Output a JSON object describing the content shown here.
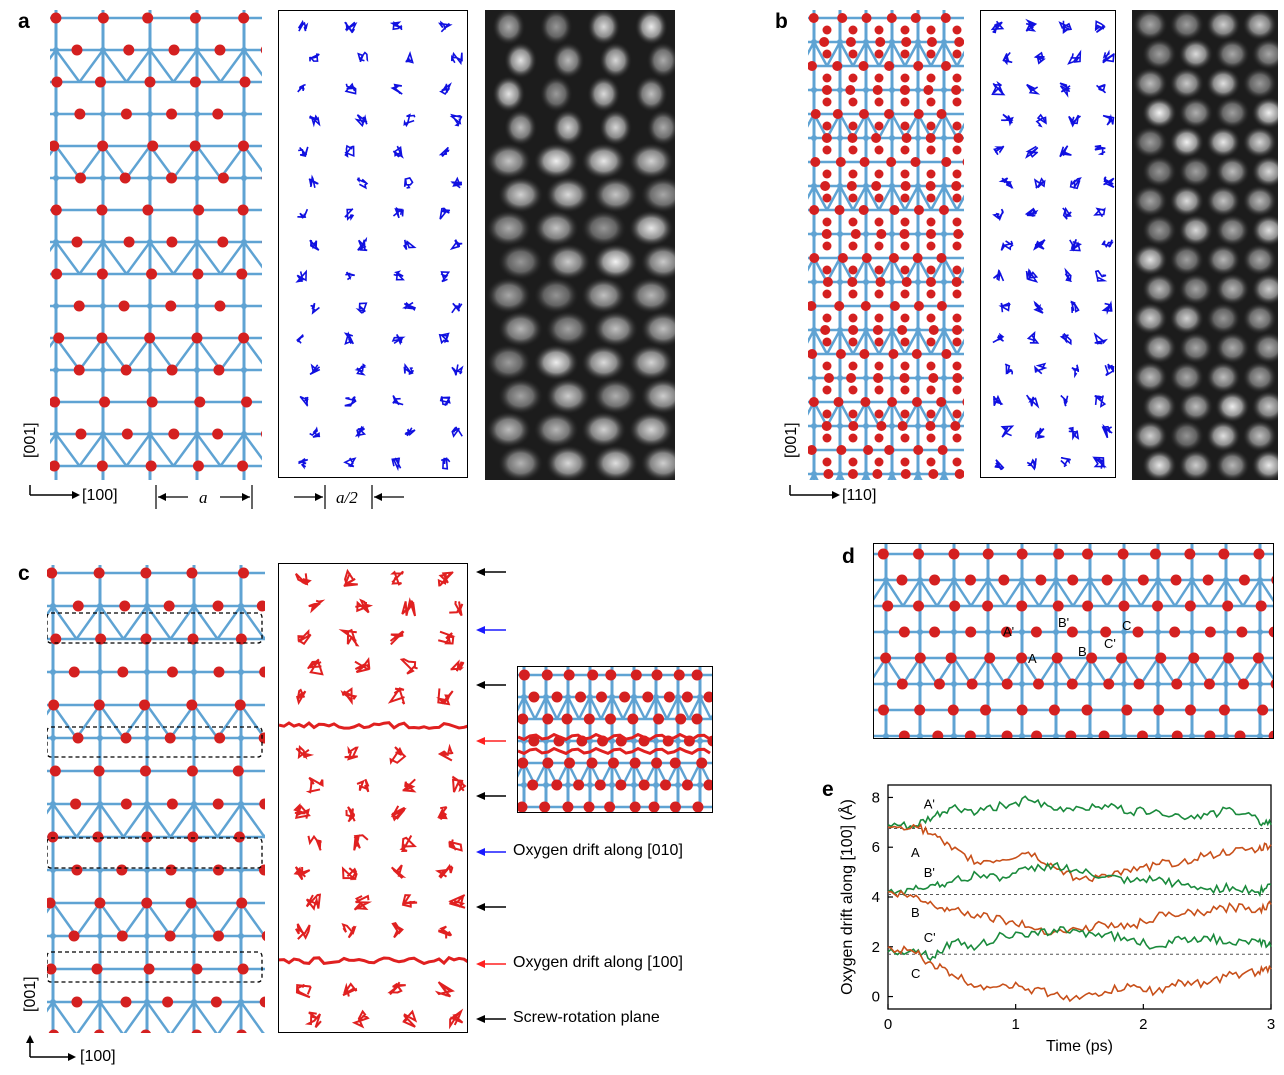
{
  "panels": {
    "a": "a",
    "b": "b",
    "c": "c",
    "d": "d",
    "e": "e"
  },
  "axes": {
    "a_vertical": "[001]",
    "a_horizontal": "[100]",
    "b_vertical": "[001]",
    "b_horizontal": "[110]",
    "c_vertical": "[001]",
    "c_horizontal": "[100]"
  },
  "dimensions": {
    "a": "a",
    "a_half": "a/2"
  },
  "legend": {
    "blue_drift": "Oxygen drift along [010]",
    "red_drift": "Oxygen drift along [100]",
    "screw_plane": "Screw-rotation plane"
  },
  "colors": {
    "oxygen": "#d42020",
    "metal": "#5fa3d3",
    "trajectory_blue": "#1010e0",
    "trajectory_red": "#e02020",
    "arrow_blue": "#1a1aff",
    "arrow_red": "#ff2020",
    "series_green": "#1a8a3c",
    "series_orange": "#c8501a"
  },
  "site_labels": [
    "A'",
    "A",
    "B'",
    "B",
    "C'",
    "C"
  ],
  "chart_data": {
    "type": "line",
    "xlabel": "Time (ps)",
    "ylabel": "Oxygen drift along [100] (Å)",
    "xlim": [
      0,
      3
    ],
    "ylim": [
      -0.5,
      8.5
    ],
    "xticks": [
      "0",
      "1",
      "2",
      "3"
    ],
    "yticks": [
      "0",
      "2",
      "4",
      "6",
      "8"
    ],
    "reference_lines": [
      6.75,
      4.1,
      1.7
    ],
    "series": [
      {
        "name": "A'",
        "color": "green",
        "x": [
          0,
          0.2,
          0.35,
          0.5,
          0.7,
          0.9,
          1.1,
          1.3,
          1.5,
          1.7,
          1.9,
          2.1,
          2.3,
          2.5,
          2.7,
          2.9,
          3.0
        ],
        "y": [
          6.9,
          6.8,
          7.2,
          7.6,
          7.4,
          7.7,
          7.9,
          7.5,
          7.6,
          7.7,
          7.4,
          7.5,
          7.2,
          7.3,
          7.5,
          7.1,
          6.9
        ]
      },
      {
        "name": "A",
        "color": "orange",
        "x": [
          0,
          0.2,
          0.35,
          0.5,
          0.7,
          0.9,
          1.1,
          1.3,
          1.5,
          1.7,
          1.9,
          2.1,
          2.3,
          2.5,
          2.7,
          2.9,
          3.0
        ],
        "y": [
          6.8,
          6.9,
          6.5,
          5.9,
          5.4,
          5.5,
          5.8,
          5.2,
          4.7,
          4.9,
          5.0,
          5.3,
          5.4,
          5.7,
          5.8,
          5.9,
          6.1
        ]
      },
      {
        "name": "B'",
        "color": "green",
        "x": [
          0,
          0.2,
          0.35,
          0.5,
          0.7,
          0.9,
          1.1,
          1.3,
          1.5,
          1.7,
          1.9,
          2.1,
          2.3,
          2.5,
          2.7,
          2.9,
          3.0
        ],
        "y": [
          4.2,
          4.3,
          4.5,
          4.6,
          4.9,
          4.8,
          5.1,
          5.3,
          5.0,
          4.8,
          4.6,
          4.7,
          4.5,
          4.3,
          4.4,
          4.2,
          4.5
        ]
      },
      {
        "name": "B",
        "color": "orange",
        "x": [
          0,
          0.2,
          0.35,
          0.5,
          0.7,
          0.9,
          1.1,
          1.3,
          1.5,
          1.7,
          1.9,
          2.1,
          2.3,
          2.5,
          2.7,
          2.9,
          3.0
        ],
        "y": [
          4.2,
          4.0,
          3.7,
          3.5,
          3.3,
          3.1,
          2.8,
          2.6,
          2.7,
          2.9,
          2.8,
          3.2,
          3.3,
          3.4,
          3.6,
          3.5,
          3.7
        ]
      },
      {
        "name": "C'",
        "color": "green",
        "x": [
          0,
          0.2,
          0.35,
          0.5,
          0.7,
          0.9,
          1.1,
          1.3,
          1.5,
          1.7,
          1.9,
          2.1,
          2.3,
          2.5,
          2.7,
          2.9,
          3.0
        ],
        "y": [
          1.8,
          1.9,
          1.6,
          2.2,
          2.0,
          2.5,
          2.4,
          2.7,
          2.6,
          2.5,
          2.3,
          2.0,
          2.3,
          2.4,
          2.1,
          2.2,
          2.0
        ]
      },
      {
        "name": "C",
        "color": "orange",
        "x": [
          0,
          0.2,
          0.35,
          0.5,
          0.7,
          0.9,
          1.1,
          1.3,
          1.5,
          1.7,
          1.9,
          2.1,
          2.3,
          2.5,
          2.7,
          2.9,
          3.0
        ],
        "y": [
          2.0,
          1.8,
          1.3,
          0.9,
          0.4,
          0.5,
          0.3,
          0.1,
          -0.1,
          0.2,
          0.4,
          0.2,
          0.6,
          0.5,
          0.9,
          1.0,
          1.1
        ]
      }
    ]
  }
}
